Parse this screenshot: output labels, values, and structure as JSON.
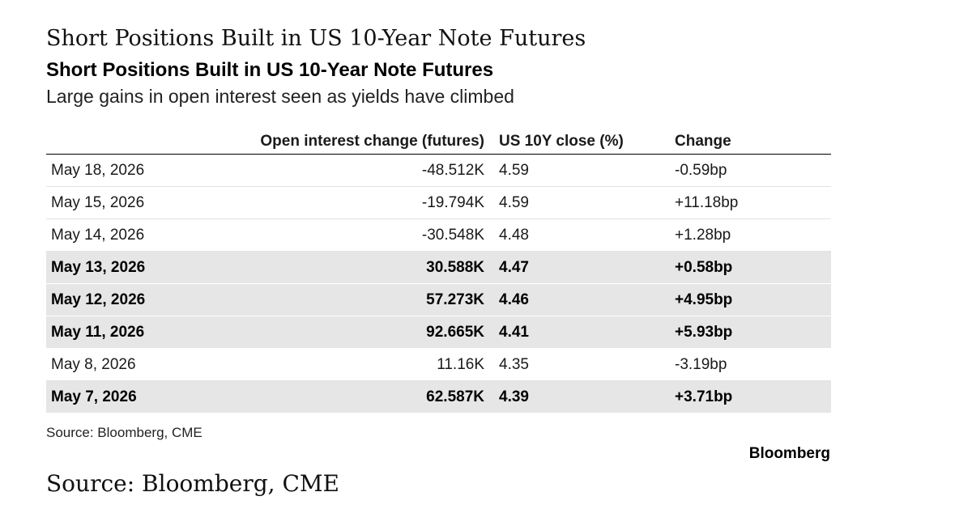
{
  "header": {
    "title_serif": "Short Positions Built in US 10-Year Note Futures"
  },
  "chart_data": {
    "type": "table",
    "title": "Short Positions Built in US 10-Year Note Futures",
    "subtitle": "Large gains in open interest seen as yields have climbed",
    "columns": [
      "",
      "Open interest change (futures)",
      "US 10Y close (%)",
      "Change"
    ],
    "rows": [
      {
        "date": "May 18, 2026",
        "oi_change": "-48.512K",
        "close": "4.59",
        "change": "-0.59bp",
        "highlight": false
      },
      {
        "date": "May 15, 2026",
        "oi_change": "-19.794K",
        "close": "4.59",
        "change": "+11.18bp",
        "highlight": false
      },
      {
        "date": "May 14, 2026",
        "oi_change": "-30.548K",
        "close": "4.48",
        "change": "+1.28bp",
        "highlight": false
      },
      {
        "date": "May 13, 2026",
        "oi_change": "30.588K",
        "close": "4.47",
        "change": "+0.58bp",
        "highlight": true
      },
      {
        "date": "May 12, 2026",
        "oi_change": "57.273K",
        "close": "4.46",
        "change": "+4.95bp",
        "highlight": true
      },
      {
        "date": "May 11, 2026",
        "oi_change": "92.665K",
        "close": "4.41",
        "change": "+5.93bp",
        "highlight": true
      },
      {
        "date": "May 8, 2026",
        "oi_change": "11.16K",
        "close": "4.35",
        "change": "-3.19bp",
        "highlight": false
      },
      {
        "date": "May 7, 2026",
        "oi_change": "62.587K",
        "close": "4.39",
        "change": "+3.71bp",
        "highlight": true
      }
    ],
    "highlight_color": "#e6e6e6"
  },
  "footer": {
    "source_small": "Source: Bloomberg, CME",
    "brand": "Bloomberg",
    "source_large": "Source: Bloomberg, CME"
  }
}
